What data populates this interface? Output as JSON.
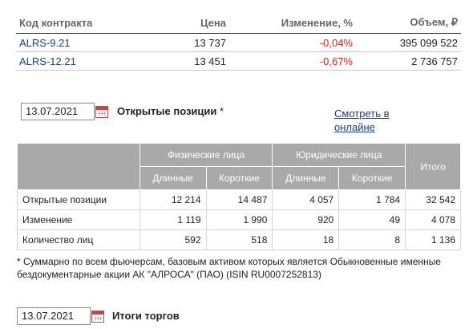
{
  "contracts": {
    "headers": [
      "Код контракта",
      "Цена",
      "Изменение, %",
      "Объем, ₽"
    ],
    "rows": [
      {
        "code": "ALRS-9.21",
        "price": "13 737",
        "change": "-0,04%",
        "volume": "395 099 522"
      },
      {
        "code": "ALRS-12.21",
        "price": "13 451",
        "change": "-0,67%",
        "volume": "2 736 757"
      }
    ]
  },
  "open_positions": {
    "date": "13.07.2021",
    "title": "Открытые позиции",
    "title_mark": "*",
    "view_online": "Смотреть в онлайне",
    "header_group": [
      "Физические лица",
      "Юридические лица"
    ],
    "header_sub": [
      "Длинные",
      "Короткие",
      "Длинные",
      "Короткие"
    ],
    "header_total": "Итого",
    "rows": [
      {
        "label": "Открытые позиции",
        "values": [
          "12 214",
          "14 487",
          "4 057",
          "1 784",
          "32 542"
        ]
      },
      {
        "label": "Изменение",
        "values": [
          "1 119",
          "1 990",
          "920",
          "49",
          "4 078"
        ]
      },
      {
        "label": "Количество лиц",
        "values": [
          "592",
          "518",
          "18",
          "8",
          "1 136"
        ]
      }
    ],
    "footnote": "* Суммарно по всем фьючерсам, базовым активом которых является Обыкновенные именные бездокументарные акции АК \"АЛРОСА\" (ПАО) (ISIN RU0007252813)"
  },
  "trading_results": {
    "date": "13.07.2021",
    "title": "Итоги торгов"
  },
  "icons": [
    "calendar-icon"
  ],
  "colors": {
    "negative": "#e0201b",
    "link": "#1a3f73",
    "header_bg": "#a9a9a9"
  }
}
